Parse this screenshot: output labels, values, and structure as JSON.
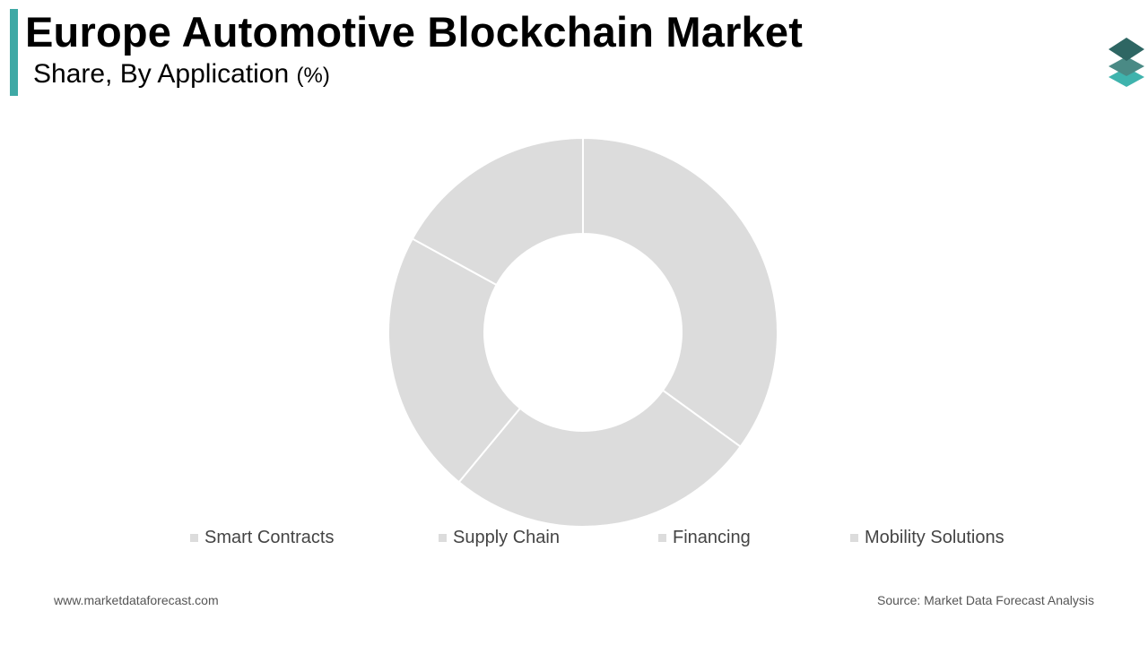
{
  "header": {
    "title": "Europe Automotive Blockchain Market",
    "subtitle": "Share, By Application ",
    "subtitle_unit": "(%)"
  },
  "logo": {
    "icon": "stacked-layers-logo-icon",
    "colors": [
      "#2e6663",
      "#4a8a85",
      "#3fb3ad"
    ]
  },
  "chart_data": {
    "type": "pie",
    "style": "donut",
    "title": "Europe Automotive Blockchain Market",
    "subtitle": "Share, By Application (%)",
    "categories": [
      "Smart Contracts",
      "Supply Chain",
      "Financing",
      "Mobility Solutions"
    ],
    "values": [
      35,
      26,
      22,
      17
    ],
    "slice_color": "#dcdcdc",
    "legend_position": "bottom",
    "start_angle": "top, clockwise"
  },
  "footer": {
    "website": "www.marketdataforecast.com",
    "source": "Source: Market Data Forecast Analysis"
  }
}
